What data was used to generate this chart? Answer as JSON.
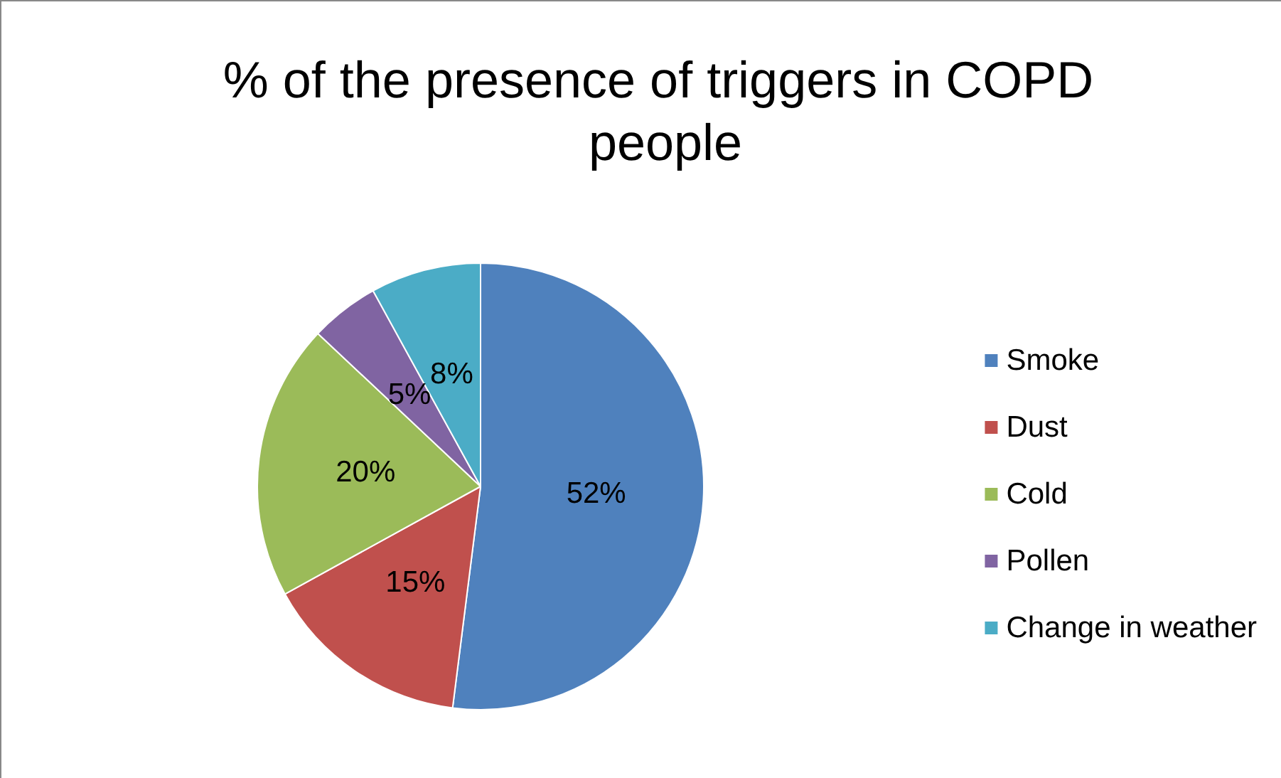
{
  "chart_data": {
    "type": "pie",
    "title": "% of the presence of triggers in COPD people",
    "categories": [
      "Smoke",
      "Dust",
      "Cold",
      "Pollen",
      "Change in weather"
    ],
    "values": [
      52,
      15,
      20,
      5,
      8
    ],
    "colors": [
      "#4f81bd",
      "#c0504d",
      "#9bbb59",
      "#8064a2",
      "#4bacc6"
    ],
    "value_labels": [
      "52%",
      "15%",
      "20%",
      "5%",
      "8%"
    ],
    "legend": "right"
  }
}
